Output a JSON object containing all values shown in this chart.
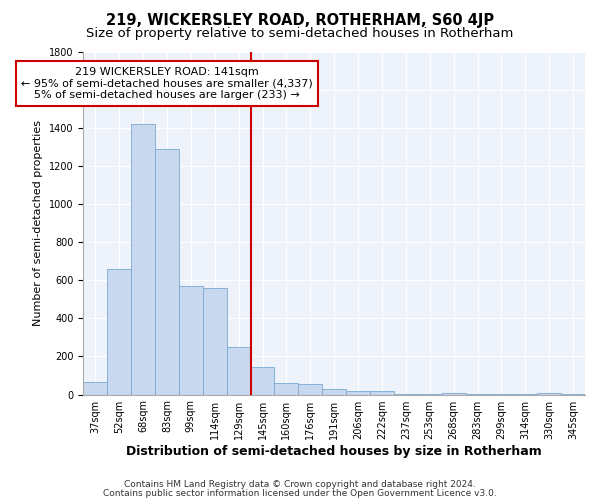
{
  "title": "219, WICKERSLEY ROAD, ROTHERHAM, S60 4JP",
  "subtitle": "Size of property relative to semi-detached houses in Rotherham",
  "xlabel": "Distribution of semi-detached houses by size in Rotherham",
  "ylabel": "Number of semi-detached properties",
  "categories": [
    "37sqm",
    "52sqm",
    "68sqm",
    "83sqm",
    "99sqm",
    "114sqm",
    "129sqm",
    "145sqm",
    "160sqm",
    "176sqm",
    "191sqm",
    "206sqm",
    "222sqm",
    "237sqm",
    "253sqm",
    "268sqm",
    "283sqm",
    "299sqm",
    "314sqm",
    "330sqm",
    "345sqm"
  ],
  "values": [
    65,
    660,
    1420,
    1290,
    570,
    560,
    250,
    145,
    60,
    55,
    30,
    18,
    18,
    5,
    5,
    10,
    3,
    3,
    3,
    10,
    3
  ],
  "bar_color": "#c8d8ee",
  "bar_edge_color": "#7aaad0",
  "vline_color": "#cc0000",
  "annotation_text": "219 WICKERSLEY ROAD: 141sqm\n← 95% of semi-detached houses are smaller (4,337)\n5% of semi-detached houses are larger (233) →",
  "annotation_box_color": "white",
  "annotation_box_edge": "#cc0000",
  "ylim": [
    0,
    1800
  ],
  "yticks": [
    0,
    200,
    400,
    600,
    800,
    1000,
    1200,
    1400,
    1600,
    1800
  ],
  "background_color": "#eef2fb",
  "grid_color": "#ffffff",
  "title_fontsize": 10.5,
  "subtitle_fontsize": 9.5,
  "xlabel_fontsize": 9,
  "ylabel_fontsize": 8,
  "tick_fontsize": 7,
  "annotation_fontsize": 8,
  "footer_fontsize": 6.5,
  "footer_line1": "Contains HM Land Registry data © Crown copyright and database right 2024.",
  "footer_line2": "Contains public sector information licensed under the Open Government Licence v3.0."
}
